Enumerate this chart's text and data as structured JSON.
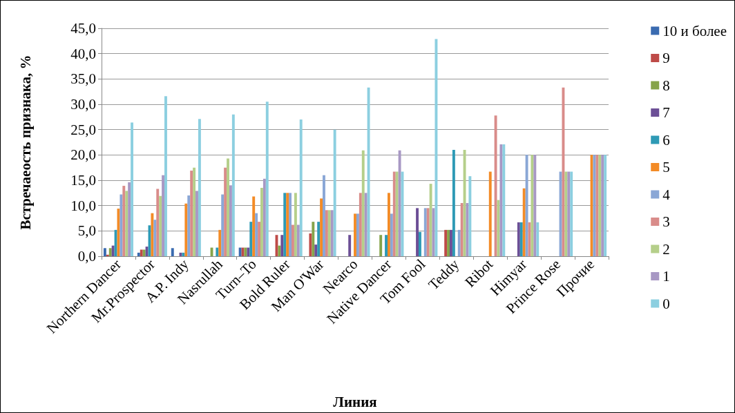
{
  "chart_data": {
    "type": "bar",
    "xlabel": "Линия",
    "ylabel": "Встречаеость признака, %",
    "categories": [
      "Northern Dancer",
      "Mr.Prospector",
      "A.P. Indy",
      "Nasrullah",
      "Turn–To",
      "Bold Ruler",
      "Man O'War",
      "Nearco",
      "Native Dancer",
      "Tom Fool",
      "Teddy",
      "Ribot",
      "Himyar",
      "Prince Rose",
      "Прочие"
    ],
    "series": [
      {
        "name": "10 и более",
        "color": "#3a6bb0",
        "values": [
          1.6,
          0.7,
          1.6,
          0,
          1.7,
          0,
          0,
          0,
          0,
          0,
          0,
          0,
          0,
          0,
          0
        ]
      },
      {
        "name": "9",
        "color": "#be4b48",
        "values": [
          0.3,
          1.3,
          0,
          0,
          1.7,
          4.2,
          4.5,
          0,
          0,
          0,
          5.2,
          0,
          0,
          0,
          0
        ]
      },
      {
        "name": "8",
        "color": "#86a44a",
        "values": [
          1.6,
          1.3,
          0,
          1.7,
          1.7,
          2.1,
          6.8,
          0,
          4.2,
          0,
          5.2,
          0,
          0,
          0,
          0
        ]
      },
      {
        "name": "7",
        "color": "#6c4f96",
        "values": [
          2.1,
          1.9,
          0.7,
          0,
          1.7,
          4.2,
          2.3,
          4.2,
          0,
          9.5,
          5.2,
          0,
          6.7,
          0,
          0
        ]
      },
      {
        "name": "6",
        "color": "#2e9ab5",
        "values": [
          5.2,
          6.1,
          0.7,
          1.7,
          6.8,
          12.5,
          6.8,
          0,
          4.2,
          4.8,
          21.0,
          0,
          6.7,
          0,
          0
        ]
      },
      {
        "name": "5",
        "color": "#f38b26",
        "values": [
          9.4,
          8.5,
          10.4,
          5.2,
          11.8,
          12.5,
          11.4,
          8.4,
          12.5,
          0,
          0,
          16.7,
          13.4,
          0,
          20.0
        ]
      },
      {
        "name": "4",
        "color": "#8aa7d6",
        "values": [
          12.2,
          7.2,
          12.0,
          12.2,
          8.5,
          12.5,
          16.0,
          8.4,
          8.4,
          9.5,
          5.2,
          0,
          20.0,
          16.7,
          20.0
        ]
      },
      {
        "name": "3",
        "color": "#d98c8a",
        "values": [
          13.9,
          13.3,
          16.9,
          17.5,
          6.8,
          6.2,
          9.1,
          12.5,
          16.7,
          9.5,
          10.5,
          27.8,
          6.7,
          33.3,
          20.0
        ]
      },
      {
        "name": "2",
        "color": "#b5cf8a",
        "values": [
          12.9,
          11.9,
          17.5,
          19.3,
          13.5,
          12.5,
          9.1,
          20.9,
          16.7,
          14.3,
          21.0,
          11.1,
          20.0,
          16.7,
          20.0
        ]
      },
      {
        "name": "1",
        "color": "#a898c4",
        "values": [
          14.6,
          16.0,
          12.9,
          14.0,
          15.3,
          6.2,
          9.1,
          12.5,
          20.9,
          9.5,
          10.5,
          22.1,
          20.0,
          16.7,
          20.0
        ]
      },
      {
        "name": "0",
        "color": "#8ccfe0",
        "values": [
          26.4,
          31.6,
          27.1,
          28.0,
          30.5,
          27.0,
          25.0,
          33.3,
          16.7,
          42.9,
          15.8,
          22.1,
          6.7,
          16.7,
          20.0
        ]
      }
    ],
    "ylim": [
      0,
      45
    ],
    "yticks": [
      {
        "value": 0,
        "label": "0,0"
      },
      {
        "value": 5,
        "label": "5,0"
      },
      {
        "value": 10,
        "label": "10,0"
      },
      {
        "value": 15,
        "label": "15,0"
      },
      {
        "value": 20,
        "label": "20,0"
      },
      {
        "value": 25,
        "label": "25,0"
      },
      {
        "value": 30,
        "label": "30,0"
      },
      {
        "value": 35,
        "label": "35,0"
      },
      {
        "value": 40,
        "label": "40,0"
      },
      {
        "value": 45,
        "label": "45,0"
      }
    ],
    "grid": "y",
    "legend": "right"
  }
}
